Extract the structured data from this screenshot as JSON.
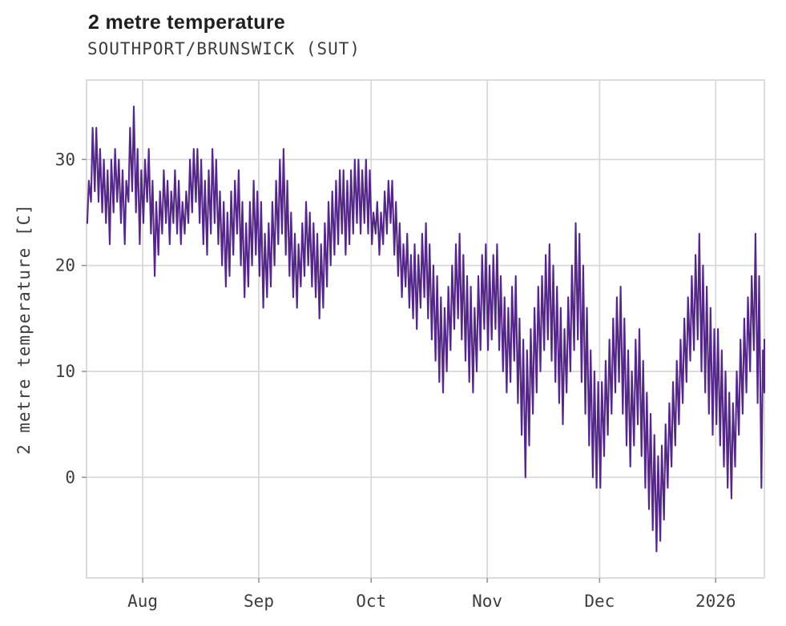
{
  "chart_data": {
    "type": "line",
    "title": "2 metre temperature",
    "subtitle": "SOUTHPORT/BRUNSWICK (SUT)",
    "xlabel": "",
    "ylabel": "2 metre temperature [C]",
    "legend": "none",
    "grid": true,
    "x_tick_labels": [
      "Aug",
      "Sep",
      "Oct",
      "Nov",
      "Dec",
      "2026"
    ],
    "x_tick_days": [
      15,
      46,
      76,
      107,
      137,
      168
    ],
    "y_ticks": [
      0,
      10,
      20,
      30
    ],
    "ylim": [
      -9.5,
      37.5
    ],
    "x_unit": "day index from plot start (two samples per day: daily min and daily max)",
    "colors": {
      "line": "#542788",
      "grid": "#d9d9d9",
      "tick": "#8f8f8f",
      "tick_label": "#3d3d3d",
      "title": "#1f1f1f",
      "subtitle": "#3d3d3d"
    },
    "daily_min": [
      24,
      26,
      27,
      26,
      25,
      24,
      22,
      25,
      26,
      24,
      22,
      26,
      27,
      25,
      22,
      24,
      26,
      23,
      19,
      21,
      23,
      24,
      22,
      24,
      23,
      22,
      23,
      24,
      25,
      26,
      24,
      22,
      21,
      23,
      24,
      22,
      20,
      18,
      19,
      21,
      23,
      20,
      17,
      18,
      20,
      21,
      19,
      16,
      17,
      18,
      20,
      22,
      23,
      21,
      19,
      17,
      16,
      18,
      19,
      20,
      18,
      17,
      15,
      16,
      18,
      20,
      21,
      22,
      23,
      21,
      22,
      23,
      24,
      23,
      24,
      23,
      22,
      23,
      21,
      22,
      23,
      24,
      21,
      19,
      17,
      18,
      16,
      15,
      14,
      16,
      17,
      15,
      13,
      11,
      9,
      8,
      10,
      12,
      14,
      15,
      13,
      11,
      9,
      8,
      10,
      12,
      14,
      12,
      13,
      14,
      12,
      10,
      8,
      9,
      11,
      7,
      4,
      0,
      3,
      6,
      8,
      10,
      12,
      13,
      11,
      9,
      7,
      5,
      8,
      10,
      12,
      13,
      9,
      6,
      3,
      0,
      -1,
      -1,
      2,
      4,
      6,
      8,
      9,
      6,
      3,
      1,
      3,
      5,
      2,
      -1,
      -3,
      -5,
      -7,
      -6,
      -4,
      -1,
      1,
      3,
      5,
      7,
      9,
      11,
      12,
      13,
      10,
      8,
      6,
      4,
      5,
      3,
      1,
      -1,
      -2,
      1,
      4,
      6,
      8,
      10,
      12,
      7,
      -1,
      8
    ],
    "daily_max": [
      28,
      33,
      33,
      31,
      30,
      29,
      30,
      31,
      30,
      29,
      28,
      33,
      35,
      31,
      29,
      30,
      31,
      28,
      26,
      27,
      29,
      28,
      27,
      29,
      28,
      26,
      27,
      30,
      31,
      31,
      30,
      28,
      29,
      31,
      30,
      27,
      26,
      25,
      27,
      28,
      29,
      26,
      24,
      26,
      28,
      27,
      26,
      23,
      24,
      26,
      28,
      30,
      31,
      28,
      25,
      23,
      22,
      24,
      26,
      25,
      24,
      23,
      22,
      24,
      26,
      27,
      28,
      29,
      29,
      28,
      29,
      30,
      30,
      29,
      30,
      29,
      25,
      26,
      25,
      27,
      28,
      28,
      26,
      24,
      22,
      23,
      21,
      22,
      21,
      23,
      24,
      22,
      20,
      19,
      17,
      16,
      18,
      20,
      22,
      23,
      21,
      19,
      18,
      16,
      19,
      21,
      22,
      20,
      21,
      22,
      19,
      17,
      16,
      18,
      19,
      15,
      13,
      12,
      14,
      16,
      18,
      19,
      21,
      22,
      20,
      18,
      16,
      14,
      17,
      20,
      24,
      23,
      20,
      16,
      12,
      10,
      9,
      9,
      11,
      13,
      15,
      17,
      18,
      15,
      12,
      10,
      13,
      14,
      11,
      8,
      6,
      4,
      2,
      3,
      5,
      7,
      9,
      11,
      13,
      15,
      17,
      19,
      21,
      23,
      20,
      18,
      16,
      14,
      14,
      12,
      10,
      8,
      7,
      10,
      13,
      15,
      17,
      19,
      23,
      19,
      12,
      13
    ]
  }
}
